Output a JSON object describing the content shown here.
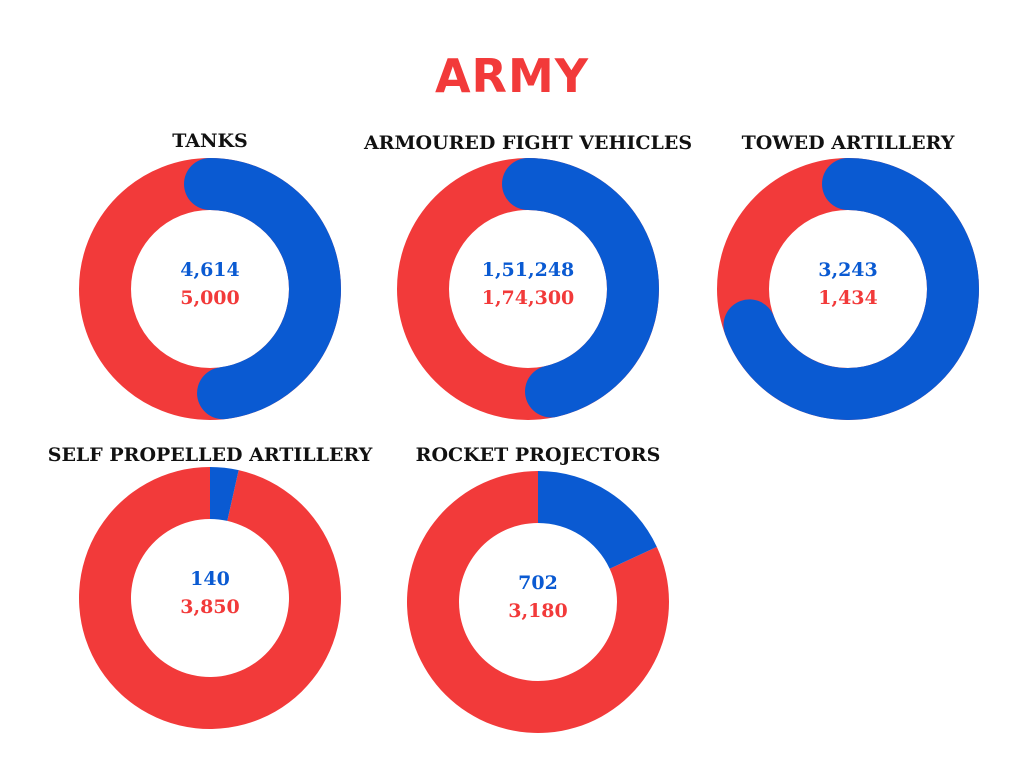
{
  "title": "ARMY",
  "colors": {
    "title": "#f23a3a",
    "series_a": "#0a5ad2",
    "series_b": "#f23a3a",
    "chart_title": "#111111"
  },
  "chart_data": [
    {
      "type": "pie",
      "title": "TANKS",
      "series": [
        {
          "value": 4614,
          "label": "4,614",
          "color": "#0a5ad2"
        },
        {
          "value": 5000,
          "label": "5,000",
          "color": "#f23a3a"
        }
      ]
    },
    {
      "type": "pie",
      "title": "ARMOURED FIGHT VEHICLES",
      "series": [
        {
          "value": 151248,
          "label": "1,51,248",
          "color": "#0a5ad2"
        },
        {
          "value": 174300,
          "label": "1,74,300",
          "color": "#f23a3a"
        }
      ]
    },
    {
      "type": "pie",
      "title": "TOWED ARTILLERY",
      "series": [
        {
          "value": 3243,
          "label": "3,243",
          "color": "#0a5ad2"
        },
        {
          "value": 1434,
          "label": "1,434",
          "color": "#f23a3a"
        }
      ]
    },
    {
      "type": "pie",
      "title": "SELF PROPELLED ARTILLERY",
      "series": [
        {
          "value": 140,
          "label": "140",
          "color": "#0a5ad2"
        },
        {
          "value": 3850,
          "label": "3,850",
          "color": "#f23a3a"
        }
      ]
    },
    {
      "type": "pie",
      "title": "ROCKET PROJECTORS",
      "series": [
        {
          "value": 702,
          "label": "702",
          "color": "#0a5ad2"
        },
        {
          "value": 3180,
          "label": "3,180",
          "color": "#f23a3a"
        }
      ]
    }
  ]
}
